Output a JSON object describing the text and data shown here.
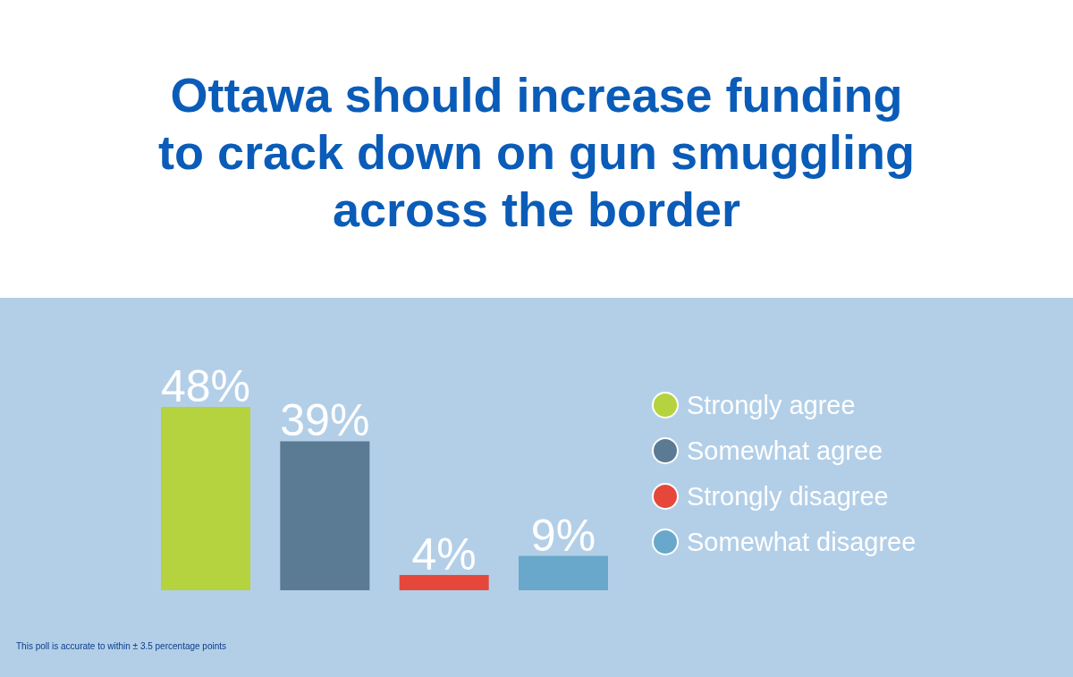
{
  "chart_data": {
    "type": "bar",
    "title": "Ottawa should increase funding to crack down on gun smuggling across the border",
    "categories": [
      null
    ],
    "series": [
      {
        "name": "Strongly agree",
        "color": "#b5d23f",
        "values": [
          48
        ],
        "value_labels": [
          "48%"
        ]
      },
      {
        "name": "Somewhat agree",
        "color": "#5b7a93",
        "values": [
          39
        ],
        "value_labels": [
          "39%"
        ]
      },
      {
        "name": "Strongly disagree",
        "color": "#e5483b",
        "values": [
          4
        ],
        "value_labels": [
          "4%"
        ]
      },
      {
        "name": "Somewhat disagree",
        "color": "#69a8ca",
        "values": [
          9
        ],
        "value_labels": [
          "9%"
        ]
      }
    ],
    "legend": "right",
    "annotations": [
      "This poll is accurate to within ± 3.5 percentage points"
    ]
  }
}
